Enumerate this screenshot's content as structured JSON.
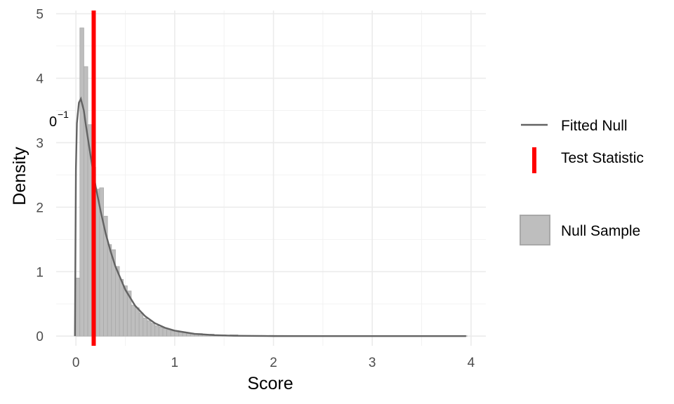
{
  "chart_data": {
    "type": "histogram",
    "xlabel": "Score",
    "ylabel": "Density",
    "xlim": [
      -0.2,
      4.15
    ],
    "ylim": [
      -0.15,
      5.05
    ],
    "x_ticks": [
      0,
      1,
      2,
      3,
      4
    ],
    "x_tick_labels": [
      "0",
      "1",
      "2",
      "3",
      "4"
    ],
    "y_ticks": [
      0,
      1,
      2,
      3,
      4,
      5
    ],
    "y_tick_labels": [
      "0",
      "1",
      "2",
      "3",
      "4",
      "5"
    ],
    "grid": true,
    "legend_position": "right",
    "annotation": {
      "text": "0",
      "sup": "−1",
      "x": -0.22,
      "y": 3.25
    },
    "histogram": {
      "name": "Null Sample",
      "bin_width": 0.04,
      "bin_start": 0,
      "densities": [
        0.9,
        4.78,
        4.18,
        3.28,
        2.62,
        2.28,
        2.3,
        1.86,
        1.42,
        1.34,
        1.08,
        0.88,
        0.78,
        0.7,
        0.48,
        0.44,
        0.36,
        0.28,
        0.24,
        0.2,
        0.16,
        0.14,
        0.12,
        0.1,
        0.08,
        0.06,
        0.06,
        0.05,
        0.04,
        0.04,
        0.03,
        0.04,
        0.03,
        0.02,
        0.03,
        0.02,
        0.02,
        0.02,
        0.01,
        0.02,
        0.02,
        0.01,
        0.01,
        0.01,
        0.01,
        0.01,
        0.01,
        0.01,
        0.005,
        0.01,
        0.005,
        0.005,
        0.005,
        0.005,
        0.005,
        0.005,
        0.005,
        0.005,
        0.005,
        0.005,
        0.005,
        0.005,
        0.005,
        0.005,
        0.005,
        0.005,
        0.005,
        0.005,
        0.005,
        0.005,
        0.005,
        0.005,
        0.005,
        0.005,
        0.005,
        0.005,
        0.005,
        0.005,
        0.005,
        0.005,
        0.005,
        0.005,
        0.005,
        0.005,
        0.005,
        0.005,
        0.005,
        0.005,
        0.005,
        0.005,
        0.005,
        0.005,
        0.005,
        0.005,
        0.005,
        0.005,
        0.005,
        0.005,
        0.005
      ],
      "fill": "#bebebe",
      "stroke": "#a8a8a8"
    },
    "fitted_null": {
      "name": "Fitted Null",
      "x": [
        -0.01,
        0.0,
        0.01,
        0.03,
        0.05,
        0.08,
        0.1,
        0.15,
        0.2,
        0.25,
        0.3,
        0.35,
        0.4,
        0.5,
        0.6,
        0.7,
        0.8,
        0.9,
        1.0,
        1.2,
        1.4,
        1.6,
        1.8,
        2.0,
        2.5,
        3.0,
        3.5,
        3.95
      ],
      "y": [
        0.0,
        2.6,
        3.3,
        3.62,
        3.68,
        3.5,
        3.28,
        2.78,
        2.32,
        1.94,
        1.6,
        1.32,
        1.08,
        0.72,
        0.47,
        0.31,
        0.2,
        0.13,
        0.085,
        0.036,
        0.015,
        0.006,
        0.003,
        0.001,
        0.0,
        0.0,
        0.0,
        0.0
      ],
      "color": "#636363"
    },
    "test_statistic": {
      "name": "Test Statistic",
      "x": 0.18,
      "color": "#ff0000"
    }
  }
}
